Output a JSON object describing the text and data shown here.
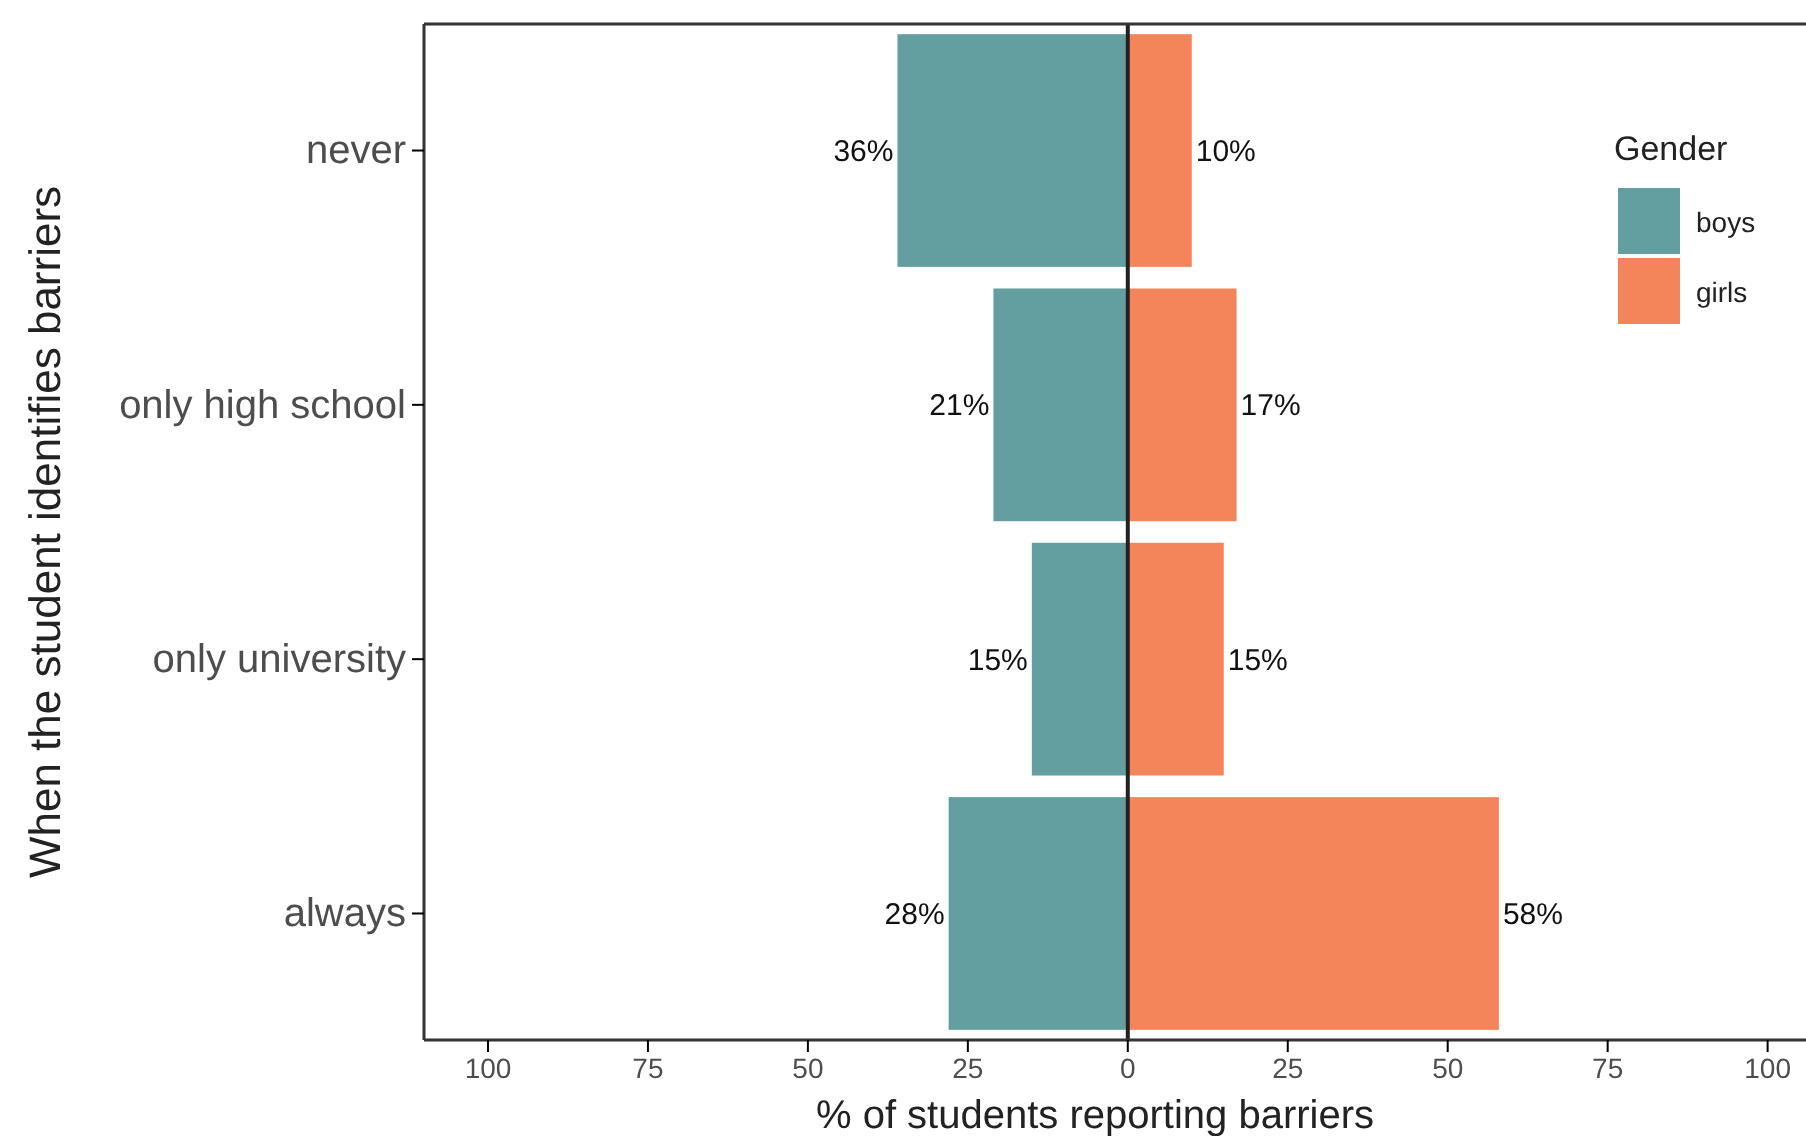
{
  "chart_data": {
    "type": "bar",
    "orientation": "horizontal",
    "xlabel": "% of students reporting barriers",
    "ylabel": "When the student identifies barriers",
    "legend_title": "Gender",
    "legend": "top right",
    "grid": false,
    "categories": [
      "never",
      "only high school",
      "only university",
      "always"
    ],
    "series": [
      {
        "name": "boys",
        "color": "#639fa0",
        "values": [
          36,
          21,
          15,
          28
        ],
        "base": [
          -36,
          -21,
          -15,
          -28
        ],
        "value_labels": [
          "36%",
          "21%",
          "15%",
          "28%"
        ]
      },
      {
        "name": "girls",
        "color": "#f4845a",
        "values": [
          10,
          17,
          15,
          58
        ],
        "value_labels": [
          "10%",
          "17%",
          "15%",
          "58%"
        ]
      }
    ],
    "xlim": [
      -110,
      106
    ],
    "xticks": [
      {
        "value": -100,
        "label": "100"
      },
      {
        "value": -75,
        "label": "75"
      },
      {
        "value": -50,
        "label": "50"
      },
      {
        "value": -25,
        "label": "25"
      },
      0,
      25,
      50,
      75,
      100
    ],
    "ref_lines": [
      {
        "axis": "x",
        "value": 0,
        "color": "#222222"
      }
    ]
  }
}
